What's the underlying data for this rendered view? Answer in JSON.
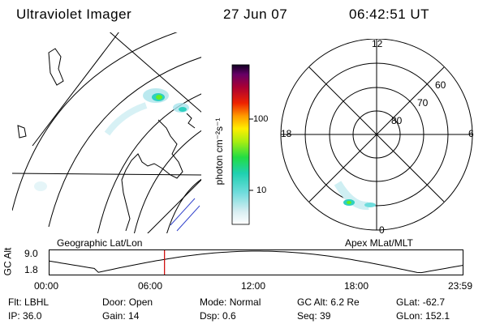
{
  "header": {
    "instrument": "Ultraviolet Imager",
    "date": "27 Jun 07",
    "time": "06:42:51 UT"
  },
  "left_panel": {
    "caption": "Geographic Lat/Lon"
  },
  "right_panel": {
    "caption": "Apex MLat/MLT",
    "mlt_labels": {
      "top": "12",
      "right": "6",
      "bottom": "0",
      "left": "18"
    },
    "lat_labels": [
      "60",
      "70",
      "80"
    ]
  },
  "colorbar": {
    "unit_label": "photon cm⁻²s⁻¹",
    "ticks": [
      "100",
      "10"
    ]
  },
  "timeline": {
    "ylabel": "GC Alt",
    "y_ticks": [
      "9.0",
      "1.8"
    ],
    "x_ticks": [
      "00:00",
      "06:00",
      "12:00",
      "18:00",
      "23:59"
    ],
    "current_time_hours": 6.714,
    "marker_color": "#cc0000"
  },
  "status": {
    "row1": [
      {
        "label": "Flt:",
        "value": "LBHL"
      },
      {
        "label": "Door:",
        "value": "Open"
      },
      {
        "label": "Mode:",
        "value": "Normal"
      },
      {
        "label": "GC Alt:",
        "value": "6.2 Re"
      },
      {
        "label": "GLat:",
        "value": "-62.7"
      }
    ],
    "row2": [
      {
        "label": "IP:",
        "value": "36.0"
      },
      {
        "label": "Gain:",
        "value": "14"
      },
      {
        "label": "Dsp:",
        "value": "0.6"
      },
      {
        "label": "Seq:",
        "value": "39"
      },
      {
        "label": "GLon:",
        "value": "152.1"
      }
    ]
  }
}
